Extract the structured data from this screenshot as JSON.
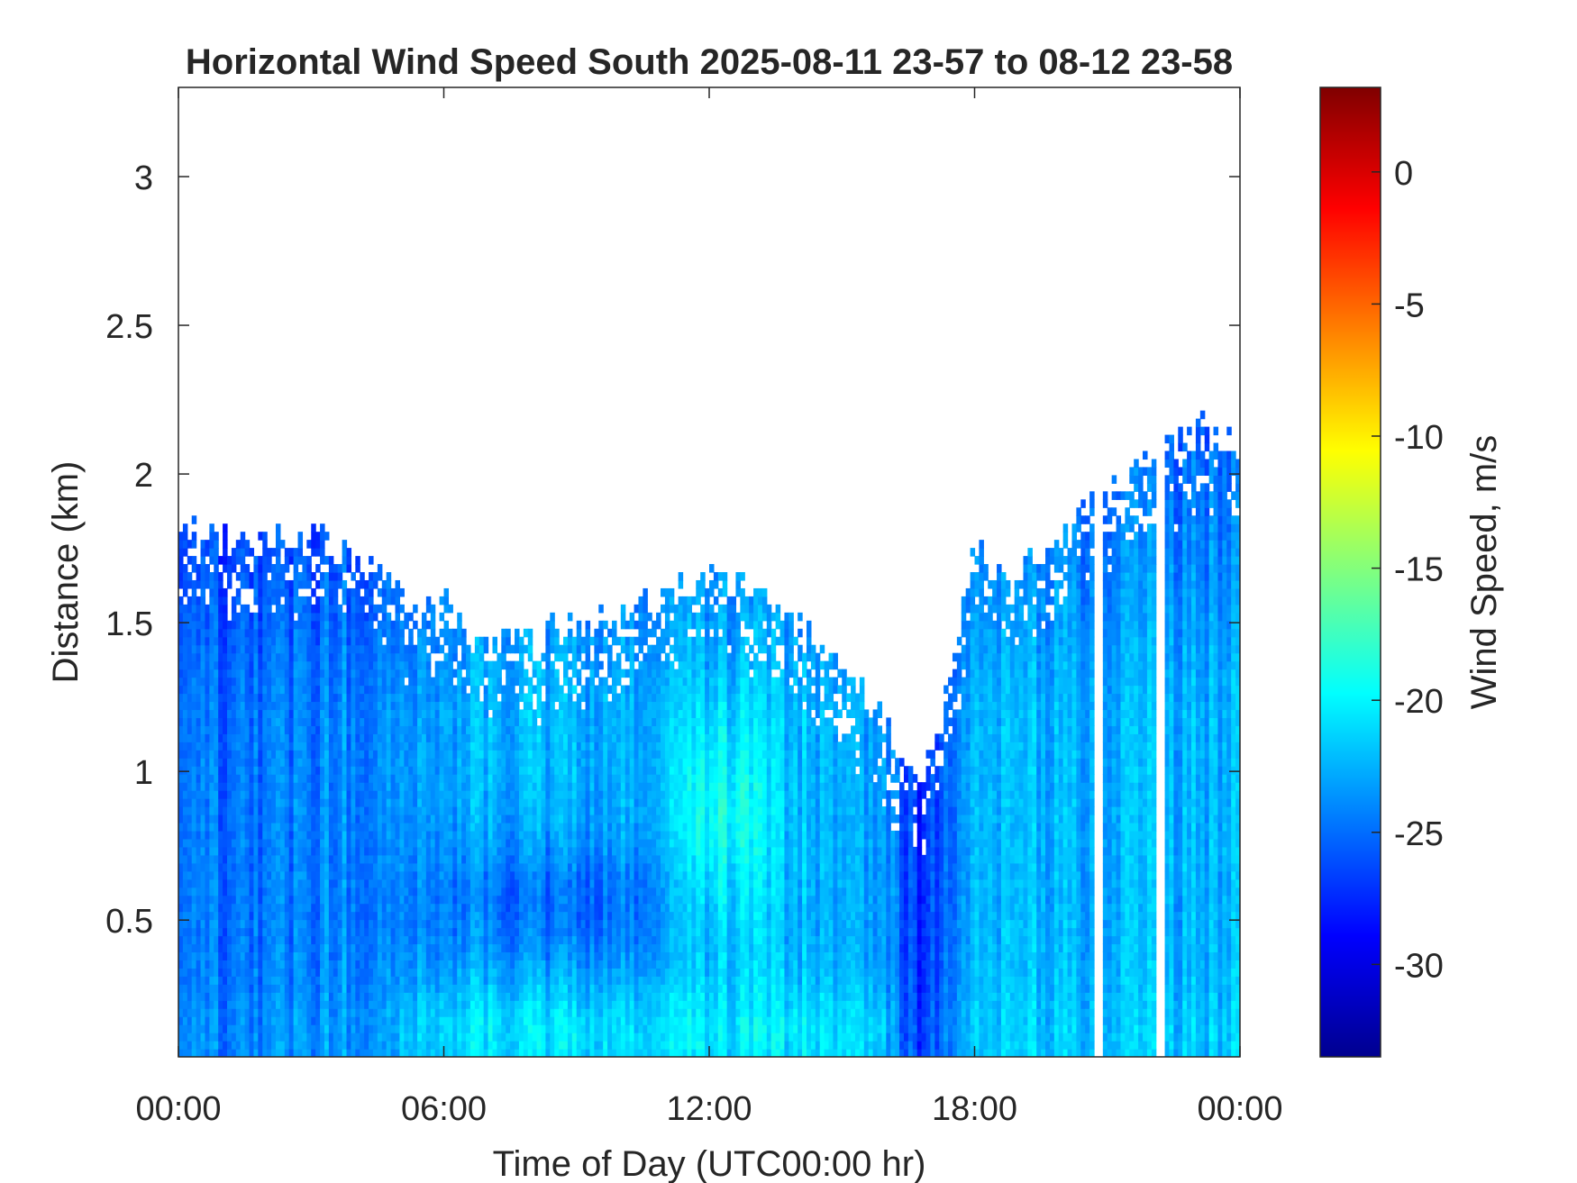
{
  "chart_data": {
    "type": "heatmap",
    "title": "Horizontal Wind Speed South 2025-08-11 23-57 to 08-12 23-58",
    "xlabel": "Time of Day (UTC00:00 hr)",
    "ylabel": "Distance (km)",
    "colorbar_label": "Wind Speed, m/s",
    "x_ticks": [
      {
        "hour": 0,
        "label": "00:00"
      },
      {
        "hour": 6,
        "label": "06:00"
      },
      {
        "hour": 12,
        "label": "12:00"
      },
      {
        "hour": 18,
        "label": "18:00"
      },
      {
        "hour": 24,
        "label": "00:00"
      }
    ],
    "y_ticks": [
      {
        "value": 0.5,
        "label": "0.5"
      },
      {
        "value": 1,
        "label": "1"
      },
      {
        "value": 1.5,
        "label": "1.5"
      },
      {
        "value": 2,
        "label": "2"
      },
      {
        "value": 2.5,
        "label": "2.5"
      },
      {
        "value": 3,
        "label": "3"
      }
    ],
    "colorbar_ticks": [
      {
        "value": 0,
        "label": "0"
      },
      {
        "value": -5,
        "label": "-5"
      },
      {
        "value": -10,
        "label": "-10"
      },
      {
        "value": -15,
        "label": "-15"
      },
      {
        "value": -20,
        "label": "-20"
      },
      {
        "value": -25,
        "label": "-25"
      },
      {
        "value": -30,
        "label": "-30"
      }
    ],
    "xlim": [
      0,
      24
    ],
    "ylim": [
      0.04,
      3.3
    ],
    "clim": [
      -33.5,
      3.2
    ],
    "colormap": "jet",
    "grid": false,
    "data_top_km": [
      {
        "hour": 0.0,
        "km": 1.82
      },
      {
        "hour": 1.0,
        "km": 1.78
      },
      {
        "hour": 2.0,
        "km": 1.8
      },
      {
        "hour": 3.0,
        "km": 1.78
      },
      {
        "hour": 4.0,
        "km": 1.72
      },
      {
        "hour": 5.0,
        "km": 1.6
      },
      {
        "hour": 6.0,
        "km": 1.55
      },
      {
        "hour": 7.0,
        "km": 1.46
      },
      {
        "hour": 8.0,
        "km": 1.45
      },
      {
        "hour": 9.0,
        "km": 1.5
      },
      {
        "hour": 10.0,
        "km": 1.55
      },
      {
        "hour": 11.0,
        "km": 1.58
      },
      {
        "hour": 12.0,
        "km": 1.68
      },
      {
        "hour": 13.0,
        "km": 1.62
      },
      {
        "hour": 14.0,
        "km": 1.5
      },
      {
        "hour": 15.0,
        "km": 1.35
      },
      {
        "hour": 16.0,
        "km": 1.15
      },
      {
        "hour": 16.8,
        "km": 0.95
      },
      {
        "hour": 17.3,
        "km": 1.2
      },
      {
        "hour": 18.0,
        "km": 1.75
      },
      {
        "hour": 19.0,
        "km": 1.65
      },
      {
        "hour": 20.0,
        "km": 1.78
      },
      {
        "hour": 21.0,
        "km": 1.95
      },
      {
        "hour": 22.0,
        "km": 2.05
      },
      {
        "hour": 23.0,
        "km": 2.15
      },
      {
        "hour": 24.0,
        "km": 2.1
      }
    ],
    "wind_field_m_s": [
      {
        "hour_range": [
          0,
          5
        ],
        "km_range": [
          0.04,
          1.8
        ],
        "speed": -25
      },
      {
        "hour_range": [
          5,
          16
        ],
        "km_range": [
          0.04,
          0.35
        ],
        "speed": -21
      },
      {
        "hour_range": [
          6,
          10
        ],
        "km_range": [
          0.35,
          0.7
        ],
        "speed": -25
      },
      {
        "hour_range": [
          11,
          13
        ],
        "km_range": [
          0.7,
          1.1
        ],
        "speed": -19
      },
      {
        "hour_range": [
          16.2,
          17.3
        ],
        "km_range": [
          0.04,
          1.2
        ],
        "speed": -28
      },
      {
        "hour_range": [
          18,
          24
        ],
        "km_range": [
          0.04,
          2.15
        ],
        "speed": -23
      }
    ],
    "gaps_hours": [
      20.8,
      22.2
    ]
  }
}
